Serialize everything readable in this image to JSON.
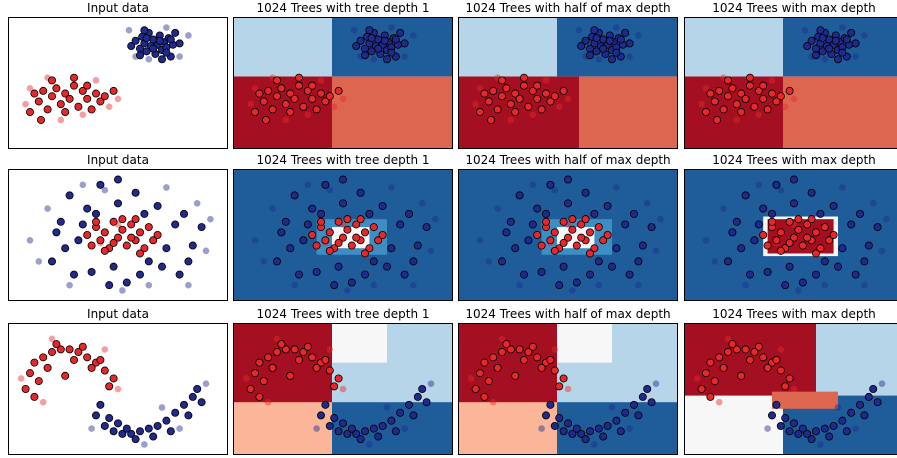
{
  "chart_data": {
    "type": "scatter",
    "grid": false,
    "col_titles": [
      "Input data",
      "1024 Trees with tree depth 1",
      "1024 Trees with half of max depth",
      "1024 Trees with max depth"
    ],
    "colors": {
      "red_dark": "#a50f22",
      "red_mid": "#dd6651",
      "red_light": "#fbb69a",
      "blue_dark": "#1e5d9a",
      "blue_mid": "#3e8ec4",
      "blue_light": "#b7d5e8",
      "white": "#f7f7f7",
      "point_red": "#e8272a",
      "point_blue": "#1f2a8c"
    },
    "datasets": [
      {
        "name": "blobs",
        "xlim": [
          0,
          100
        ],
        "ylim": [
          0,
          100
        ],
        "train": {
          "blue": [
            [
              56,
              78
            ],
            [
              58,
              82
            ],
            [
              60,
              76
            ],
            [
              61,
              85
            ],
            [
              62,
              80
            ],
            [
              63,
              74
            ],
            [
              64,
              88
            ],
            [
              65,
              78
            ],
            [
              66,
              83
            ],
            [
              67,
              72
            ],
            [
              68,
              79
            ],
            [
              69,
              86
            ],
            [
              70,
              75
            ],
            [
              71,
              81
            ],
            [
              72,
              77
            ],
            [
              73,
              84
            ],
            [
              74,
              70
            ],
            [
              75,
              79
            ],
            [
              76,
              88
            ],
            [
              60,
              71
            ],
            [
              63,
              84
            ],
            [
              66,
              76
            ],
            [
              69,
              82
            ],
            [
              72,
              73
            ],
            [
              74,
              83
            ],
            [
              78,
              80
            ],
            [
              62,
              90
            ],
            [
              70,
              68
            ]
          ],
          "red": [
            [
              12,
              42
            ],
            [
              14,
              36
            ],
            [
              16,
              44
            ],
            [
              18,
              30
            ],
            [
              20,
              40
            ],
            [
              22,
              46
            ],
            [
              24,
              34
            ],
            [
              26,
              42
            ],
            [
              28,
              38
            ],
            [
              30,
              48
            ],
            [
              32,
              32
            ],
            [
              34,
              44
            ],
            [
              36,
              38
            ],
            [
              38,
              30
            ],
            [
              40,
              42
            ],
            [
              42,
              36
            ],
            [
              26,
              28
            ],
            [
              20,
              52
            ],
            [
              15,
              22
            ],
            [
              44,
              40
            ],
            [
              10,
              28
            ],
            [
              30,
              54
            ],
            [
              36,
              48
            ],
            [
              48,
              44
            ]
          ]
        },
        "test": {
          "blue": [
            [
              55,
              90
            ],
            [
              64,
              68
            ],
            [
              78,
              70
            ],
            [
              82,
              86
            ],
            [
              58,
              70
            ],
            [
              72,
              92
            ]
          ],
          "red": [
            [
              10,
              46
            ],
            [
              24,
              22
            ],
            [
              34,
              26
            ],
            [
              46,
              32
            ],
            [
              18,
              54
            ],
            [
              40,
              52
            ],
            [
              8,
              34
            ],
            [
              50,
              38
            ]
          ]
        },
        "regions": {
          "depth1": [
            {
              "x0": 0,
              "x1": 45,
              "y0": 0,
              "y1": 55,
              "c": "red_dark"
            },
            {
              "x0": 45,
              "x1": 100,
              "y0": 0,
              "y1": 55,
              "c": "red_mid"
            },
            {
              "x0": 0,
              "x1": 45,
              "y0": 55,
              "y1": 100,
              "c": "blue_light"
            },
            {
              "x0": 45,
              "x1": 100,
              "y0": 55,
              "y1": 100,
              "c": "blue_dark"
            }
          ],
          "half": [
            {
              "x0": 0,
              "x1": 55,
              "y0": 0,
              "y1": 55,
              "c": "red_dark"
            },
            {
              "x0": 55,
              "x1": 100,
              "y0": 0,
              "y1": 55,
              "c": "red_mid"
            },
            {
              "x0": 0,
              "x1": 45,
              "y0": 55,
              "y1": 100,
              "c": "blue_light"
            },
            {
              "x0": 45,
              "x1": 100,
              "y0": 55,
              "y1": 100,
              "c": "blue_dark"
            }
          ],
          "max": [
            {
              "x0": 0,
              "x1": 45,
              "y0": 0,
              "y1": 55,
              "c": "red_dark"
            },
            {
              "x0": 45,
              "x1": 100,
              "y0": 0,
              "y1": 55,
              "c": "red_mid"
            },
            {
              "x0": 0,
              "x1": 45,
              "y0": 55,
              "y1": 100,
              "c": "blue_light"
            },
            {
              "x0": 45,
              "x1": 100,
              "y0": 55,
              "y1": 100,
              "c": "blue_dark"
            }
          ]
        }
      },
      {
        "name": "circles",
        "xlim": [
          0,
          100
        ],
        "ylim": [
          0,
          100
        ],
        "train": {
          "blue": [
            [
              20,
              30
            ],
            [
              24,
              60
            ],
            [
              28,
              80
            ],
            [
              30,
              20
            ],
            [
              32,
              46
            ],
            [
              36,
              70
            ],
            [
              38,
              22
            ],
            [
              42,
              88
            ],
            [
              46,
              12
            ],
            [
              50,
              74
            ],
            [
              54,
              14
            ],
            [
              58,
              82
            ],
            [
              60,
              20
            ],
            [
              64,
              30
            ],
            [
              68,
              72
            ],
            [
              72,
              40
            ],
            [
              76,
              58
            ],
            [
              78,
              20
            ],
            [
              80,
              66
            ],
            [
              84,
              42
            ],
            [
              88,
              56
            ],
            [
              26,
              40
            ],
            [
              34,
              58
            ],
            [
              40,
              66
            ],
            [
              48,
              26
            ],
            [
              62,
              66
            ],
            [
              70,
              26
            ],
            [
              82,
              30
            ],
            [
              50,
              92
            ],
            [
              22,
              52
            ]
          ],
          "red": [
            [
              36,
              50
            ],
            [
              38,
              42
            ],
            [
              40,
              56
            ],
            [
              42,
              46
            ],
            [
              44,
              52
            ],
            [
              46,
              40
            ],
            [
              48,
              60
            ],
            [
              50,
              48
            ],
            [
              52,
              54
            ],
            [
              54,
              42
            ],
            [
              56,
              58
            ],
            [
              58,
              46
            ],
            [
              60,
              52
            ],
            [
              62,
              40
            ],
            [
              64,
              56
            ],
            [
              66,
              46
            ],
            [
              68,
              50
            ],
            [
              44,
              38
            ],
            [
              52,
              62
            ],
            [
              60,
              36
            ],
            [
              40,
              60
            ],
            [
              58,
              62
            ],
            [
              48,
              44
            ],
            [
              56,
              48
            ]
          ]
        },
        "test": {
          "blue": [
            [
              10,
              46
            ],
            [
              14,
              30
            ],
            [
              18,
              70
            ],
            [
              28,
              12
            ],
            [
              34,
              88
            ],
            [
              44,
              84
            ],
            [
              52,
              8
            ],
            [
              64,
              12
            ],
            [
              72,
              86
            ],
            [
              86,
              74
            ],
            [
              90,
              38
            ],
            [
              92,
              62
            ],
            [
              82,
              12
            ]
          ],
          "red": [
            [
              42,
              44
            ],
            [
              50,
              58
            ]
          ]
        },
        "regions": {
          "depth1": [
            {
              "x0": 0,
              "x1": 100,
              "y0": 0,
              "y1": 100,
              "c": "blue_dark"
            },
            {
              "x0": 38,
              "x1": 70,
              "y0": 35,
              "y1": 62,
              "c": "blue_mid"
            },
            {
              "x0": 45,
              "x1": 62,
              "y0": 40,
              "y1": 56,
              "c": "white"
            }
          ],
          "half": [
            {
              "x0": 0,
              "x1": 100,
              "y0": 0,
              "y1": 100,
              "c": "blue_dark"
            },
            {
              "x0": 38,
              "x1": 70,
              "y0": 35,
              "y1": 62,
              "c": "blue_mid"
            },
            {
              "x0": 45,
              "x1": 62,
              "y0": 40,
              "y1": 56,
              "c": "white"
            }
          ],
          "max": [
            {
              "x0": 0,
              "x1": 100,
              "y0": 0,
              "y1": 100,
              "c": "blue_dark"
            },
            {
              "x0": 36,
              "x1": 70,
              "y0": 34,
              "y1": 64,
              "c": "white"
            },
            {
              "x0": 38,
              "x1": 68,
              "y0": 36,
              "y1": 62,
              "c": "red_dark"
            }
          ]
        }
      },
      {
        "name": "moons",
        "xlim": [
          0,
          100
        ],
        "ylim": [
          0,
          100
        ],
        "train": {
          "red": [
            [
              8,
              50
            ],
            [
              10,
              62
            ],
            [
              12,
              70
            ],
            [
              16,
              74
            ],
            [
              20,
              78
            ],
            [
              24,
              80
            ],
            [
              28,
              80
            ],
            [
              32,
              78
            ],
            [
              36,
              74
            ],
            [
              40,
              70
            ],
            [
              44,
              64
            ],
            [
              48,
              58
            ],
            [
              14,
              56
            ],
            [
              22,
              84
            ],
            [
              34,
              82
            ],
            [
              42,
              72
            ],
            [
              18,
              66
            ],
            [
              30,
              72
            ],
            [
              38,
              66
            ],
            [
              26,
              60
            ],
            [
              46,
              52
            ],
            [
              12,
              44
            ]
          ],
          "blue": [
            [
              40,
              30
            ],
            [
              44,
              22
            ],
            [
              48,
              18
            ],
            [
              52,
              16
            ],
            [
              56,
              16
            ],
            [
              60,
              18
            ],
            [
              64,
              20
            ],
            [
              68,
              22
            ],
            [
              72,
              26
            ],
            [
              76,
              32
            ],
            [
              80,
              38
            ],
            [
              84,
              44
            ],
            [
              86,
              50
            ],
            [
              42,
              38
            ],
            [
              50,
              24
            ],
            [
              58,
              12
            ],
            [
              66,
              14
            ],
            [
              74,
              18
            ],
            [
              82,
              30
            ],
            [
              88,
              40
            ],
            [
              46,
              28
            ],
            [
              54,
              20
            ]
          ]
        },
        "test": {
          "red": [
            [
              6,
              58
            ],
            [
              20,
              88
            ],
            [
              44,
              80
            ],
            [
              50,
              50
            ],
            [
              16,
              40
            ]
          ],
          "blue": [
            [
              38,
              20
            ],
            [
              62,
              8
            ],
            [
              78,
              20
            ],
            [
              90,
              54
            ],
            [
              70,
              36
            ]
          ]
        },
        "regions": {
          "depth1": [
            {
              "x0": 0,
              "x1": 45,
              "y0": 0,
              "y1": 100,
              "c": "red_dark"
            },
            {
              "x0": 45,
              "x1": 100,
              "y0": 0,
              "y1": 100,
              "c": "blue_dark"
            },
            {
              "x0": 45,
              "x1": 100,
              "y0": 40,
              "y1": 100,
              "c": "blue_light"
            },
            {
              "x0": 45,
              "x1": 70,
              "y0": 70,
              "y1": 100,
              "c": "white"
            },
            {
              "x0": 0,
              "x1": 45,
              "y0": 0,
              "y1": 40,
              "c": "red_light"
            }
          ],
          "half": [
            {
              "x0": 0,
              "x1": 45,
              "y0": 0,
              "y1": 100,
              "c": "red_dark"
            },
            {
              "x0": 45,
              "x1": 100,
              "y0": 0,
              "y1": 100,
              "c": "blue_dark"
            },
            {
              "x0": 45,
              "x1": 100,
              "y0": 40,
              "y1": 100,
              "c": "blue_light"
            },
            {
              "x0": 45,
              "x1": 70,
              "y0": 70,
              "y1": 100,
              "c": "white"
            },
            {
              "x0": 0,
              "x1": 45,
              "y0": 0,
              "y1": 40,
              "c": "red_light"
            }
          ],
          "max": [
            {
              "x0": 0,
              "x1": 100,
              "y0": 0,
              "y1": 100,
              "c": "blue_dark"
            },
            {
              "x0": 0,
              "x1": 60,
              "y0": 45,
              "y1": 100,
              "c": "red_dark"
            },
            {
              "x0": 0,
              "x1": 45,
              "y0": 0,
              "y1": 45,
              "c": "white"
            },
            {
              "x0": 60,
              "x1": 100,
              "y0": 45,
              "y1": 100,
              "c": "blue_light"
            },
            {
              "x0": 40,
              "x1": 70,
              "y0": 35,
              "y1": 48,
              "c": "red_mid"
            }
          ]
        }
      }
    ]
  }
}
